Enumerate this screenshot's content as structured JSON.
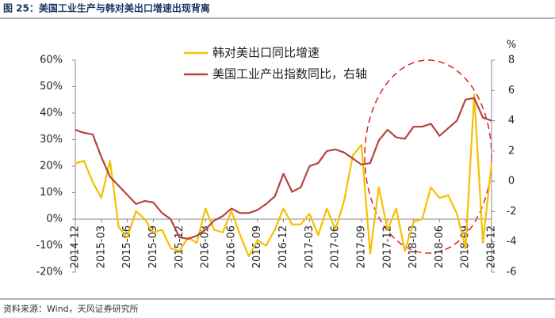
{
  "chart_data": {
    "type": "line",
    "title": "图 25：美国工业生产与韩对美出口增速出现背离",
    "source": "资料来源：Wind，天风证券研究所",
    "y2_unit": "%",
    "categories": [
      "2014-12",
      null,
      null,
      "2015-03",
      null,
      null,
      "2015-06",
      null,
      null,
      "2015-09",
      null,
      null,
      "2015-12",
      null,
      null,
      "2016-03",
      null,
      null,
      "2016-06",
      null,
      null,
      "2016-09",
      null,
      null,
      "2016-12",
      null,
      null,
      "2017-03",
      null,
      null,
      "2017-06",
      null,
      null,
      "2017-09",
      null,
      null,
      "2017-12",
      null,
      null,
      "2018-03",
      null,
      null,
      "2018-06",
      null,
      null,
      "2018-09",
      null,
      null,
      "2018-12"
    ],
    "series": [
      {
        "name": "韩对美出口同比增速",
        "color": "#f5c000",
        "axis": "y",
        "values": [
          21,
          22,
          14,
          8,
          22,
          -3,
          -7,
          3,
          0,
          -5,
          -4,
          -11,
          -12,
          -7,
          -9,
          4,
          -4,
          -5,
          3,
          -6,
          -14,
          -8,
          -10,
          -4,
          4,
          -2,
          -2,
          2,
          -6,
          4,
          -4,
          7,
          24,
          28,
          -13,
          12,
          -4,
          4,
          -12,
          -1,
          0,
          12,
          8,
          9,
          2,
          -11,
          47,
          -9,
          21
        ]
      },
      {
        "name": "美国工业产出指数同比，右轴",
        "color": "#b5443f",
        "axis": "y2",
        "values": [
          3.4,
          3.2,
          3.1,
          1.6,
          0.3,
          -0.3,
          -0.9,
          -1.5,
          -1.3,
          -1.4,
          -2.1,
          -2.5,
          -3.7,
          -3.8,
          -3.6,
          -3.2,
          -2.6,
          -2.3,
          -1.8,
          -2.1,
          -2.1,
          -1.9,
          -1.5,
          -1.0,
          0.5,
          -0.7,
          -0.4,
          1.0,
          1.2,
          2.0,
          2.1,
          1.9,
          1.5,
          1.1,
          1.2,
          2.7,
          3.4,
          2.9,
          2.8,
          3.6,
          3.6,
          3.8,
          3.0,
          3.5,
          4.0,
          5.4,
          5.5,
          4.2,
          4.0
        ]
      }
    ],
    "ylim": [
      -20,
      60
    ],
    "yticks": [
      {
        "value": -20,
        "label": "-20%"
      },
      {
        "value": -10,
        "label": "-10%"
      },
      {
        "value": 0,
        "label": "0%"
      },
      {
        "value": 10,
        "label": "10%"
      },
      {
        "value": 20,
        "label": "20%"
      },
      {
        "value": 30,
        "label": "30%"
      },
      {
        "value": 40,
        "label": "40%"
      },
      {
        "value": 50,
        "label": "50%"
      },
      {
        "value": 60,
        "label": "60%"
      }
    ],
    "y2lim": [
      -6,
      8
    ],
    "y2ticks": [
      -6,
      -4,
      -2,
      0,
      2,
      4,
      6,
      8
    ],
    "grid": false
  }
}
